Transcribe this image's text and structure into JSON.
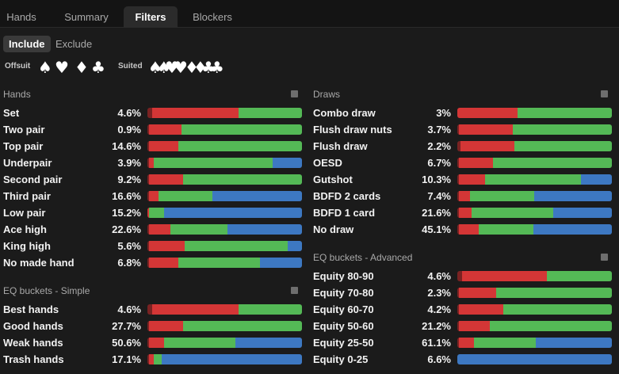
{
  "tabs": [
    "Hands",
    "Summary",
    "Filters",
    "Blockers"
  ],
  "toggle": {
    "include": "Include",
    "exclude": "Exclude"
  },
  "suits": {
    "offsuit_label": "Offsuit",
    "suited_label": "Suited",
    "offsuit": [
      "♠",
      "♥",
      "♦",
      "♣"
    ],
    "suited": [
      "♠♠",
      "♥♥",
      "♦♦",
      "♣♣"
    ]
  },
  "colors": {
    "dark_red": "#7a2222",
    "red": "#d43636",
    "green": "#54b956",
    "blue": "#3d78c2"
  },
  "hands": {
    "title": "Hands",
    "rows": [
      {
        "name": "Set",
        "pct": "4.6%",
        "mix": [
          0.03,
          0.56,
          0.41,
          0
        ]
      },
      {
        "name": "Two pair",
        "pct": "0.9%",
        "mix": [
          0.01,
          0.21,
          0.78,
          0
        ]
      },
      {
        "name": "Top pair",
        "pct": "14.6%",
        "mix": [
          0.01,
          0.19,
          0.8,
          0
        ]
      },
      {
        "name": "Underpair",
        "pct": "3.9%",
        "mix": [
          0.01,
          0.03,
          0.77,
          0.19
        ]
      },
      {
        "name": "Second pair",
        "pct": "9.2%",
        "mix": [
          0.01,
          0.22,
          0.77,
          0
        ]
      },
      {
        "name": "Third pair",
        "pct": "16.6%",
        "mix": [
          0.01,
          0.06,
          0.35,
          0.58
        ]
      },
      {
        "name": "Low pair",
        "pct": "15.2%",
        "mix": [
          0,
          0.01,
          0.1,
          0.89
        ]
      },
      {
        "name": "Ace high",
        "pct": "22.6%",
        "mix": [
          0.01,
          0.14,
          0.37,
          0.48
        ]
      },
      {
        "name": "King high",
        "pct": "5.6%",
        "mix": [
          0.01,
          0.23,
          0.67,
          0.09
        ]
      },
      {
        "name": "No made hand",
        "pct": "6.8%",
        "mix": [
          0.01,
          0.19,
          0.53,
          0.27
        ]
      }
    ]
  },
  "eq_simple": {
    "title": "EQ buckets - Simple",
    "rows": [
      {
        "name": "Best hands",
        "pct": "4.6%",
        "mix": [
          0.03,
          0.56,
          0.41,
          0
        ]
      },
      {
        "name": "Good hands",
        "pct": "27.7%",
        "mix": [
          0.01,
          0.22,
          0.77,
          0
        ]
      },
      {
        "name": "Weak hands",
        "pct": "50.6%",
        "mix": [
          0.01,
          0.1,
          0.46,
          0.43
        ]
      },
      {
        "name": "Trash hands",
        "pct": "17.1%",
        "mix": [
          0.01,
          0.03,
          0.05,
          0.91
        ]
      }
    ]
  },
  "draws": {
    "title": "Draws",
    "rows": [
      {
        "name": "Combo draw",
        "pct": "3%",
        "mix": [
          0,
          0.39,
          0.61,
          0
        ]
      },
      {
        "name": "Flush draw nuts",
        "pct": "3.7%",
        "mix": [
          0.01,
          0.35,
          0.64,
          0
        ]
      },
      {
        "name": "Flush draw",
        "pct": "2.2%",
        "mix": [
          0.02,
          0.35,
          0.63,
          0
        ]
      },
      {
        "name": "OESD",
        "pct": "6.7%",
        "mix": [
          0.01,
          0.22,
          0.77,
          0
        ]
      },
      {
        "name": "Gutshot",
        "pct": "10.3%",
        "mix": [
          0.01,
          0.17,
          0.62,
          0.2
        ]
      },
      {
        "name": "BDFD 2 cards",
        "pct": "7.4%",
        "mix": [
          0.01,
          0.07,
          0.42,
          0.5
        ]
      },
      {
        "name": "BDFD 1 card",
        "pct": "21.6%",
        "mix": [
          0.01,
          0.08,
          0.53,
          0.38
        ]
      },
      {
        "name": "No draw",
        "pct": "45.1%",
        "mix": [
          0.01,
          0.13,
          0.35,
          0.51
        ]
      }
    ]
  },
  "eq_advanced": {
    "title": "EQ buckets - Advanced",
    "rows": [
      {
        "name": "Equity 80-90",
        "pct": "4.6%",
        "mix": [
          0.03,
          0.55,
          0.42,
          0
        ]
      },
      {
        "name": "Equity 70-80",
        "pct": "2.3%",
        "mix": [
          0.01,
          0.24,
          0.75,
          0
        ]
      },
      {
        "name": "Equity 60-70",
        "pct": "4.2%",
        "mix": [
          0.01,
          0.29,
          0.7,
          0
        ]
      },
      {
        "name": "Equity 50-60",
        "pct": "21.2%",
        "mix": [
          0.01,
          0.2,
          0.79,
          0
        ]
      },
      {
        "name": "Equity 25-50",
        "pct": "61.1%",
        "mix": [
          0.01,
          0.1,
          0.4,
          0.49
        ]
      },
      {
        "name": "Equity 0-25",
        "pct": "6.6%",
        "mix": [
          0,
          0,
          0,
          1
        ]
      }
    ]
  }
}
